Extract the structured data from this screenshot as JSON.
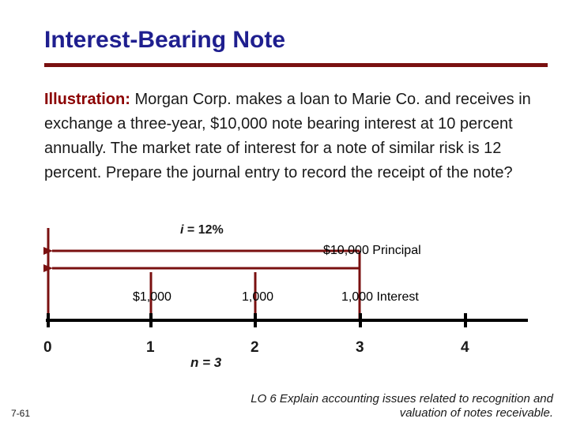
{
  "title": "Interest-Bearing Note",
  "illustration": {
    "lead": "Illustration:",
    "text": "  Morgan Corp. makes a loan to Marie Co. and receives in exchange a three-year, $10,000 note bearing interest at 10 percent annually. The market rate of interest for a note of similar risk is 12 percent.  Prepare the journal entry to record the receipt of the note?"
  },
  "timeline": {
    "rate_var": "i",
    "rate_value": " = 12%",
    "principal_label": "$10,000   Principal",
    "interest_labels": [
      "$1,000",
      "1,000",
      "1,000   Interest"
    ],
    "periods": [
      "0",
      "1",
      "2",
      "3",
      "4"
    ],
    "n_label": "n = 3",
    "colors": {
      "arrows": "#7a1010",
      "axis": "#000000"
    }
  },
  "footer": {
    "slide_number": "7-61",
    "learning_objective": "LO 6  Explain accounting issues related to recognition and valuation of notes receivable."
  }
}
